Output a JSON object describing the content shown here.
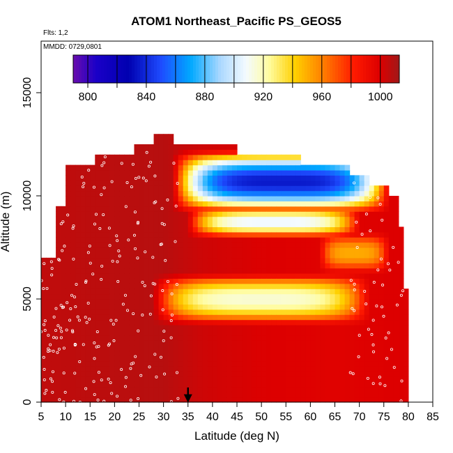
{
  "chart_data": {
    "type": "heatmap",
    "title": "ATOM1 Northeast_Pacific PS_GEOS5",
    "subtitle_flights": "Flts: 1,2",
    "subtitle_dates": "MMDD: 0729,0801",
    "xlabel": "Latitude (deg N)",
    "ylabel": "Altitude (m)",
    "xlim": [
      5,
      85
    ],
    "ylim": [
      0,
      17500
    ],
    "xticks": [
      "5",
      "10",
      "15",
      "20",
      "25",
      "30",
      "35",
      "40",
      "45",
      "50",
      "55",
      "60",
      "65",
      "70",
      "75",
      "80",
      "85"
    ],
    "yticks": [
      "0",
      "5000",
      "10000",
      "15000"
    ],
    "xtick_values": [
      5,
      10,
      15,
      20,
      25,
      30,
      35,
      40,
      45,
      50,
      55,
      60,
      65,
      70,
      75,
      80,
      85
    ],
    "ytick_values": [
      0,
      5000,
      10000,
      15000
    ],
    "colorbar": {
      "range": [
        790,
        1013
      ],
      "tick_labels": [
        "800",
        "840",
        "880",
        "920",
        "960",
        "1000"
      ],
      "tick_values": [
        800,
        840,
        880,
        920,
        960,
        1000
      ]
    },
    "marker_latitude": 35,
    "envelope_top": [
      {
        "lat": 5,
        "alt": 7000
      },
      {
        "lat": 8,
        "alt": 7000
      },
      {
        "lat": 8,
        "alt": 9500
      },
      {
        "lat": 10,
        "alt": 9500
      },
      {
        "lat": 10,
        "alt": 11500
      },
      {
        "lat": 16,
        "alt": 11500
      },
      {
        "lat": 16,
        "alt": 12000
      },
      {
        "lat": 24,
        "alt": 12000
      },
      {
        "lat": 24,
        "alt": 12500
      },
      {
        "lat": 28,
        "alt": 12500
      },
      {
        "lat": 28,
        "alt": 13000
      },
      {
        "lat": 32,
        "alt": 13000
      },
      {
        "lat": 32,
        "alt": 12500
      },
      {
        "lat": 45,
        "alt": 12500
      },
      {
        "lat": 45,
        "alt": 12000
      },
      {
        "lat": 58,
        "alt": 12000
      },
      {
        "lat": 58,
        "alt": 11500
      },
      {
        "lat": 68,
        "alt": 11500
      },
      {
        "lat": 68,
        "alt": 11000
      },
      {
        "lat": 72,
        "alt": 11000
      },
      {
        "lat": 72,
        "alt": 10500
      },
      {
        "lat": 76,
        "alt": 10500
      },
      {
        "lat": 76,
        "alt": 10000
      },
      {
        "lat": 78,
        "alt": 10000
      },
      {
        "lat": 78,
        "alt": 8500
      },
      {
        "lat": 79,
        "alt": 8500
      },
      {
        "lat": 79,
        "alt": 7000
      },
      {
        "lat": 79.5,
        "alt": 7000
      },
      {
        "lat": 79.5,
        "alt": 5500
      },
      {
        "lat": 80,
        "alt": 5500
      },
      {
        "lat": 80,
        "alt": 0
      }
    ],
    "pressure_field": {
      "background_by_latitude": [
        {
          "lat": 5,
          "hPa": 1006
        },
        {
          "lat": 30,
          "hPa": 1008
        },
        {
          "lat": 38,
          "hPa": 1003
        },
        {
          "lat": 50,
          "hPa": 1000
        },
        {
          "lat": 65,
          "hPa": 998
        },
        {
          "lat": 80,
          "hPa": 1000
        }
      ],
      "low_pressure_bands": [
        {
          "lat_min": 32,
          "lat_max": 76,
          "alt_min": 9200,
          "alt_max": 12200,
          "min_hPa": 835
        },
        {
          "lat_min": 35,
          "lat_max": 70,
          "alt_min": 8000,
          "alt_max": 9500,
          "min_hPa": 905
        },
        {
          "lat_min": 28,
          "lat_max": 72,
          "alt_min": 3800,
          "alt_max": 6200,
          "min_hPa": 915
        },
        {
          "lat_min": 62,
          "lat_max": 76,
          "alt_min": 6300,
          "alt_max": 8200,
          "min_hPa": 950
        }
      ]
    }
  }
}
